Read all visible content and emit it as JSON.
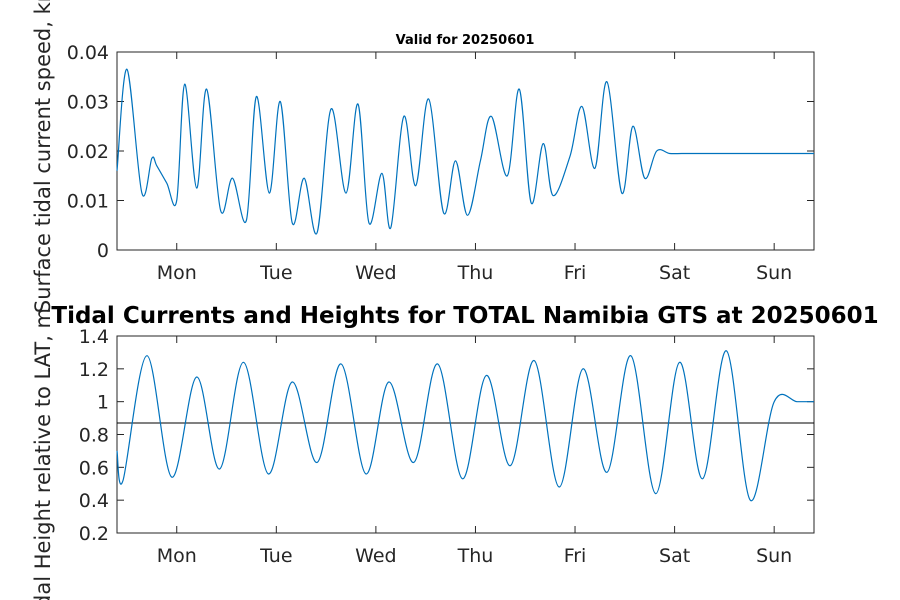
{
  "chart_data": [
    {
      "type": "line",
      "title": "Valid for 20250601",
      "ylabel": "Surface tidal current speed, kn",
      "ylim": [
        0,
        0.04
      ],
      "yticks": [
        0,
        0.01,
        0.02,
        0.03,
        0.04
      ],
      "ytick_labels": [
        "0",
        "0.01",
        "0.02",
        "0.03",
        "0.04"
      ],
      "xlim": [
        -0.4,
        6.6
      ],
      "xticks": [
        0.2,
        1.2,
        2.2,
        3.2,
        4.2,
        5.2,
        6.2
      ],
      "xtick_labels": [
        "Mon",
        "Tue",
        "Wed",
        "Thu",
        "Fri",
        "Sat",
        "Sun"
      ],
      "grid": false,
      "series": [
        {
          "color": "#0072BD",
          "x": [
            -0.4,
            -0.3,
            -0.15,
            -0.05,
            0.0,
            0.1,
            0.2,
            0.28,
            0.4,
            0.5,
            0.64,
            0.76,
            0.9,
            1.0,
            1.13,
            1.24,
            1.36,
            1.48,
            1.61,
            1.75,
            1.9,
            2.02,
            2.13,
            2.26,
            2.35,
            2.48,
            2.6,
            2.73,
            2.88,
            3.0,
            3.12,
            3.25,
            3.36,
            3.52,
            3.64,
            3.76,
            3.88,
            3.98,
            4.15,
            4.27,
            4.4,
            4.52,
            4.67,
            4.78,
            4.9,
            5.02,
            5.15,
            5.27,
            5.4,
            5.52,
            5.65,
            5.78,
            5.9,
            6.0,
            6.12,
            6.23,
            6.35,
            6.47,
            6.6
          ],
          "values": [
            0.016,
            0.0365,
            0.0115,
            0.0185,
            0.017,
            0.0135,
            0.01,
            0.0335,
            0.0125,
            0.0325,
            0.008,
            0.0145,
            0.006,
            0.031,
            0.0115,
            0.03,
            0.0055,
            0.0145,
            0.0035,
            0.0285,
            0.0115,
            0.0295,
            0.0055,
            0.0155,
            0.0045,
            0.027,
            0.013,
            0.0305,
            0.0075,
            0.018,
            0.007,
            0.018,
            0.027,
            0.015,
            0.0325,
            0.0095,
            0.0215,
            0.011,
            0.019,
            0.029,
            0.0165,
            0.034,
            0.0115,
            0.025,
            0.0145,
            0.02,
            0.0195,
            0.0195,
            0.0195,
            0.0195,
            0.0195,
            0.0195,
            0.0195,
            0.0195,
            0.0195,
            0.0195,
            0.0195,
            0.0195,
            0.0195
          ]
        }
      ]
    },
    {
      "type": "line",
      "title": "Tidal Currents and Heights for TOTAL Namibia GTS at 20250601",
      "ylabel": "Tidal Height relative to LAT, m",
      "ylim": [
        0.2,
        1.4
      ],
      "yticks": [
        0.2,
        0.4,
        0.6,
        0.8,
        1.0,
        1.2,
        1.4
      ],
      "ytick_labels": [
        "0.2",
        "0.4",
        "0.6",
        "0.8",
        "1",
        "1.2",
        "1.4"
      ],
      "xlim": [
        -0.4,
        6.6
      ],
      "xticks": [
        0.2,
        1.2,
        2.2,
        3.2,
        4.2,
        5.2,
        6.2
      ],
      "xtick_labels": [
        "Mon",
        "Tue",
        "Wed",
        "Thu",
        "Fri",
        "Sat",
        "Sun"
      ],
      "grid": false,
      "reference_line": {
        "y": 0.87,
        "color": "#000000"
      },
      "series": [
        {
          "color": "#0072BD",
          "x": [
            -0.4,
            -0.34,
            -0.1,
            0.15,
            0.4,
            0.63,
            0.87,
            1.12,
            1.36,
            1.61,
            1.85,
            2.1,
            2.33,
            2.58,
            2.82,
            3.07,
            3.31,
            3.55,
            3.79,
            4.04,
            4.28,
            4.52,
            4.76,
            5.01,
            5.25,
            5.48,
            5.72,
            5.96,
            6.2,
            6.43,
            6.6
          ],
          "values": [
            0.7,
            0.52,
            1.28,
            0.54,
            1.15,
            0.59,
            1.24,
            0.56,
            1.12,
            0.63,
            1.23,
            0.56,
            1.12,
            0.63,
            1.23,
            0.53,
            1.16,
            0.61,
            1.25,
            0.48,
            1.2,
            0.57,
            1.28,
            0.44,
            1.24,
            0.53,
            1.31,
            0.4,
            1.0,
            1.0,
            1.0
          ]
        }
      ]
    }
  ]
}
